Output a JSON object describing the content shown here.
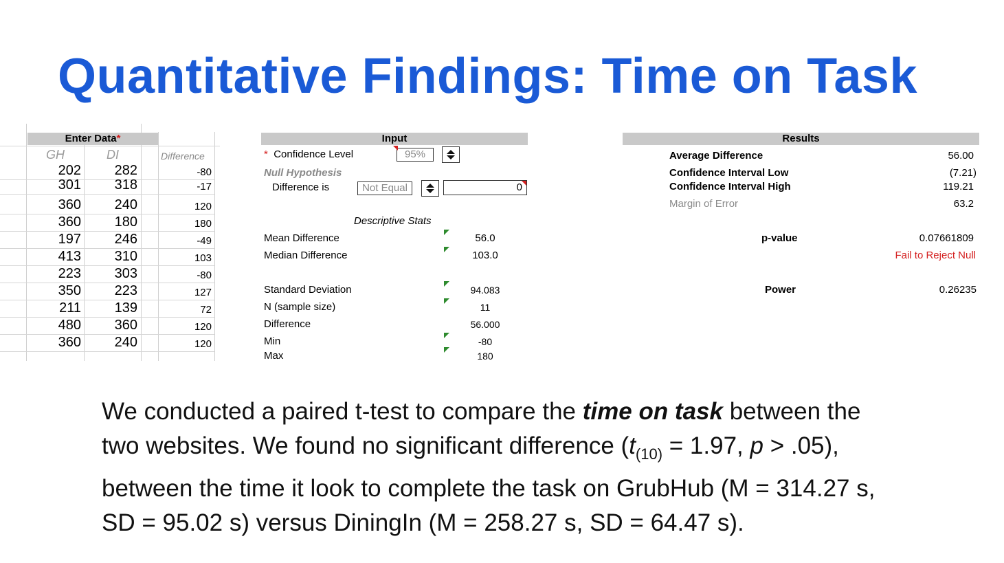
{
  "slide": {
    "title": "Quantitative Findings: Time on Task"
  },
  "enter_data": {
    "header": "Enter Data",
    "required_mark": "*",
    "columns": [
      "GH",
      "DI",
      "Difference"
    ],
    "rows": [
      {
        "gh": "202",
        "di": "282",
        "diff": "-80"
      },
      {
        "gh": "301",
        "di": "318",
        "diff": "-17"
      },
      {
        "gh": "360",
        "di": "240",
        "diff": "120"
      },
      {
        "gh": "360",
        "di": "180",
        "diff": "180"
      },
      {
        "gh": "197",
        "di": "246",
        "diff": "-49"
      },
      {
        "gh": "413",
        "di": "310",
        "diff": "103"
      },
      {
        "gh": "223",
        "di": "303",
        "diff": "-80"
      },
      {
        "gh": "350",
        "di": "223",
        "diff": "127"
      },
      {
        "gh": "211",
        "di": "139",
        "diff": "72"
      },
      {
        "gh": "480",
        "di": "360",
        "diff": "120"
      },
      {
        "gh": "360",
        "di": "240",
        "diff": "120"
      }
    ]
  },
  "input": {
    "header": "Input",
    "confidence_mark": "*",
    "confidence_label": "Confidence Level",
    "confidence_value": "95%",
    "null_hypothesis_label": "Null Hypothesis",
    "difference_label": "Difference is",
    "difference_value": "Not Equal",
    "difference_amount": "0"
  },
  "descriptive_stats": {
    "header": "Descriptive Stats",
    "items": [
      {
        "label": "Mean Difference",
        "value": "56.0"
      },
      {
        "label": "Median Difference",
        "value": "103.0"
      },
      {
        "label": "Standard Deviation",
        "value": "94.083"
      },
      {
        "label": "N (sample size)",
        "value": "11"
      },
      {
        "label": "Difference",
        "value": "56.000"
      },
      {
        "label": "Min",
        "value": "-80"
      },
      {
        "label": "Max",
        "value": "180"
      }
    ]
  },
  "results": {
    "header": "Results",
    "average_difference_label": "Average Difference",
    "average_difference_value": "56.00",
    "ci_low_label": "Confidence Interval Low",
    "ci_low_value": "(7.21)",
    "ci_high_label": "Confidence Interval High",
    "ci_high_value": "119.21",
    "margin_label": "Margin of Error",
    "margin_value": "63.2",
    "pvalue_label": "p-value",
    "pvalue_value": "0.07661809",
    "decision": "Fail to Reject Null",
    "power_label": "Power",
    "power_value": "0.26235"
  },
  "summary": {
    "l1_a": "We conducted a paired t-test to compare the ",
    "l1_b": "time on task",
    "l1_c": " between the",
    "l2_a": "two websites. We found no significant difference (",
    "l2_t": "t",
    "l2_sub": "(10)",
    "l2_b": " = 1.97, ",
    "l2_p": "p",
    "l2_c": " > .05),",
    "l3": "between the time it look to complete the task on GrubHub (M = 314.27 s,",
    "l4": "SD = 95.02 s) versus DiningIn (M = 258.27 s, SD = 64.47 s)."
  },
  "colors": {
    "title": "#1a5ad6",
    "header_bg": "#c9c9c9",
    "decision_red": "#d42020",
    "indicator_green": "#2e8b2e"
  }
}
